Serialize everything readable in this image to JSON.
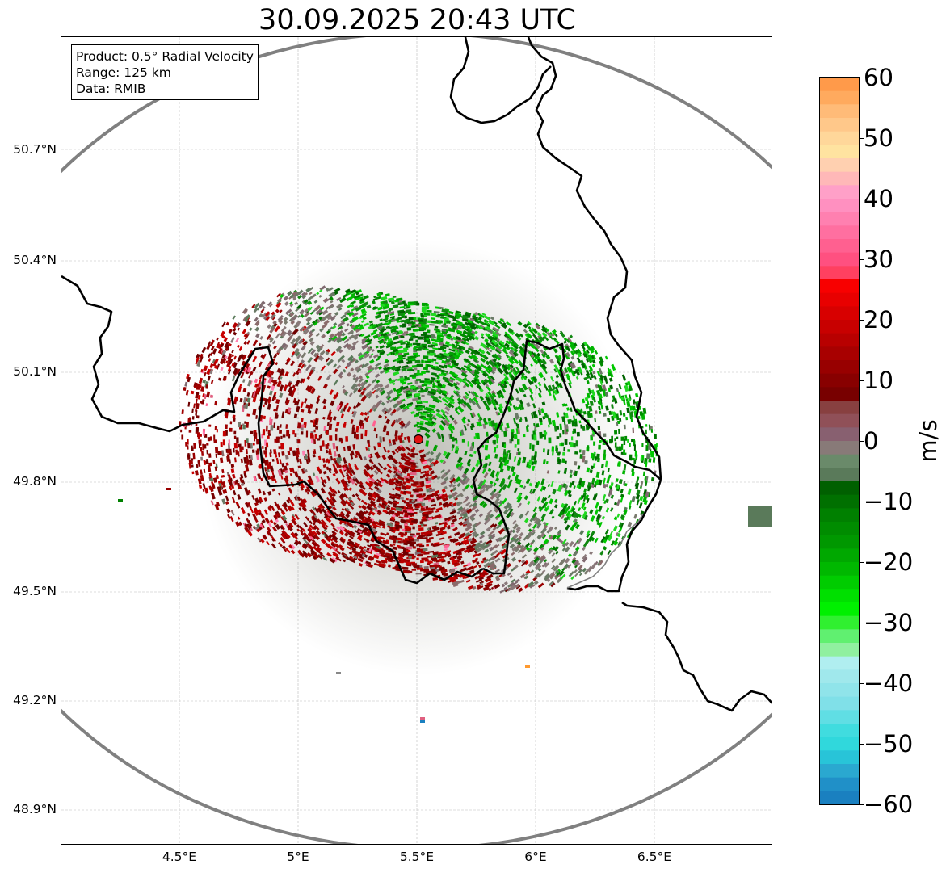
{
  "title": "30.09.2025 20:43 UTC",
  "info": {
    "product": "Product: 0.5° Radial Velocity",
    "range": "Range: 125 km",
    "source": "Data: RMIB"
  },
  "axes": {
    "lat_labels": [
      "50.7°N",
      "50.4°N",
      "50.1°N",
      "49.8°N",
      "49.5°N",
      "49.2°N",
      "48.9°N"
    ],
    "lon_labels": [
      "4.5°E",
      "5°E",
      "5.5°E",
      "6°E",
      "6.5°E"
    ]
  },
  "colorbar": {
    "unit": "m/s",
    "tick_labels": [
      "60",
      "50",
      "40",
      "30",
      "20",
      "10",
      "0",
      "−10",
      "−20",
      "−30",
      "−40",
      "−50",
      "−60"
    ],
    "min": -60,
    "max": 60
  },
  "radar": {
    "site_lon": 5.505,
    "site_lat": 49.915,
    "range_km": 125
  },
  "colors": {
    "range_ring": "#808080",
    "border": "#000000",
    "site_marker": "#e01010",
    "inbound_green": "#00a000",
    "outbound_red": "#a00000",
    "near_zero": "#7a7a6e"
  }
}
